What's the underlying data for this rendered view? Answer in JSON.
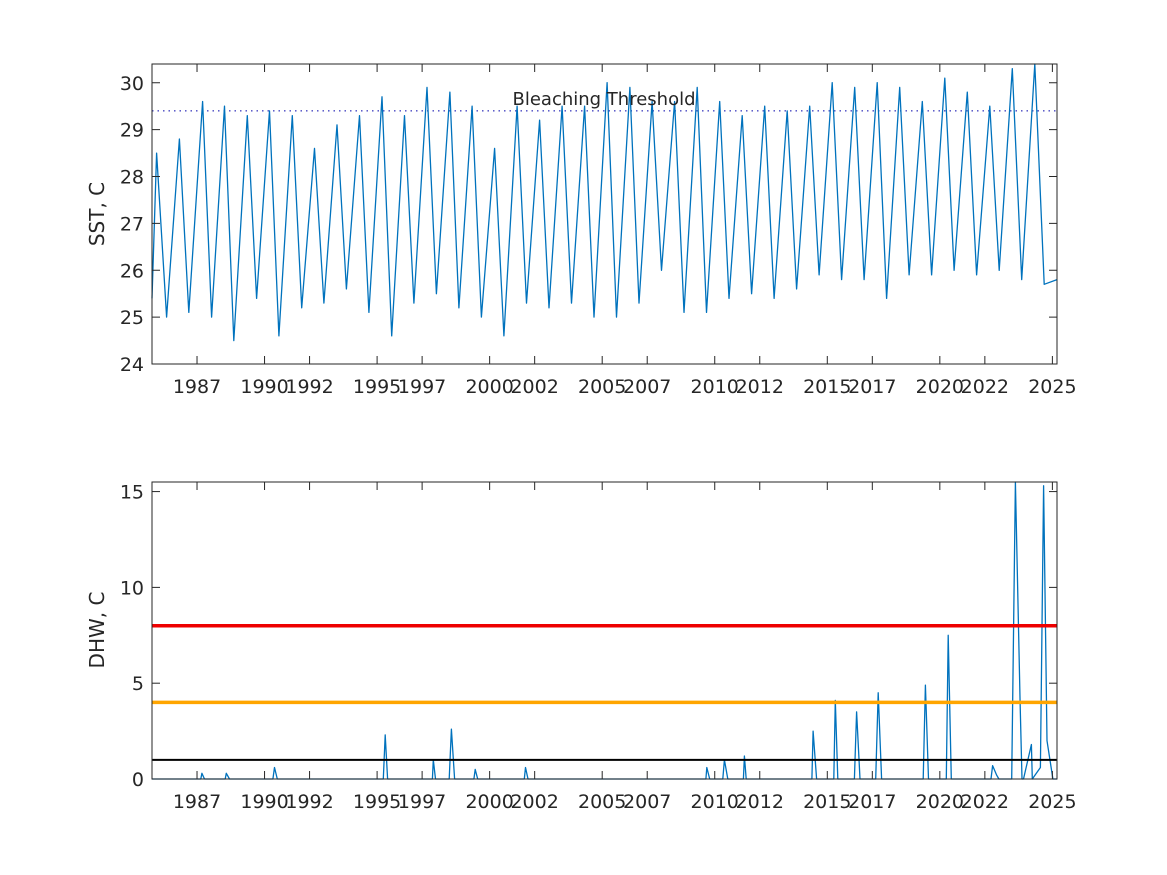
{
  "chart_data": [
    {
      "type": "line",
      "title": "",
      "xlabel": "",
      "ylabel": "SST, C",
      "xlim": [
        "1985-01-01",
        "2025-03-15"
      ],
      "ylim": [
        24,
        30.4
      ],
      "x_ticks": [
        "1987",
        "1990",
        "1992",
        "1995",
        "1997",
        "2000",
        "2002",
        "2005",
        "2007",
        "2010",
        "2012",
        "2015",
        "2017",
        "2020",
        "2022",
        "2025"
      ],
      "y_ticks": [
        "24",
        "25",
        "26",
        "27",
        "28",
        "29",
        "30"
      ],
      "grid": false,
      "series": [
        {
          "color": "#0072BD",
          "x": [
            "1985-01-01",
            "1985-03-15",
            "1985-08-25",
            "1986-03-20",
            "1986-08-20",
            "1987-04-01",
            "1987-08-25",
            "1988-03-20",
            "1988-08-20",
            "1989-03-25",
            "1989-08-25",
            "1990-03-20",
            "1990-08-20",
            "1991-03-25",
            "1991-08-25",
            "1992-03-20",
            "1992-08-20",
            "1993-03-20",
            "1993-08-20",
            "1994-03-20",
            "1994-08-20",
            "1995-03-20",
            "1995-08-25",
            "1996-03-20",
            "1996-08-20",
            "1997-03-20",
            "1997-08-20",
            "1998-03-25",
            "1998-08-20",
            "1999-03-20",
            "1999-08-20",
            "2000-03-20",
            "2000-08-20",
            "2001-03-20",
            "2001-08-20",
            "2002-03-20",
            "2002-08-20",
            "2003-03-20",
            "2003-08-20",
            "2004-03-20",
            "2004-08-20",
            "2005-03-20",
            "2005-08-20",
            "2006-03-25",
            "2006-08-20",
            "2007-03-20",
            "2007-08-20",
            "2008-03-20",
            "2008-08-20",
            "2009-03-20",
            "2009-08-20",
            "2010-03-20",
            "2010-08-20",
            "2011-03-20",
            "2011-08-20",
            "2012-03-20",
            "2012-08-20",
            "2013-03-20",
            "2013-08-20",
            "2014-03-20",
            "2014-08-20",
            "2015-03-20",
            "2015-08-20",
            "2016-03-20",
            "2016-08-20",
            "2017-03-20",
            "2017-08-20",
            "2018-03-20",
            "2018-08-20",
            "2019-03-20",
            "2019-08-20",
            "2020-03-20",
            "2020-08-20",
            "2021-03-20",
            "2021-08-20",
            "2022-03-20",
            "2022-08-20",
            "2023-03-20",
            "2023-08-20",
            "2024-03-20",
            "2024-08-20",
            "2025-03-15"
          ],
          "values": [
            25.4,
            28.5,
            25.0,
            28.8,
            25.1,
            29.6,
            25.0,
            29.5,
            24.5,
            29.3,
            25.4,
            29.4,
            24.6,
            29.3,
            25.2,
            28.6,
            25.3,
            29.1,
            25.6,
            29.3,
            25.1,
            29.7,
            24.6,
            29.3,
            25.3,
            29.9,
            25.5,
            29.8,
            25.2,
            29.5,
            25.0,
            28.6,
            24.6,
            29.5,
            25.3,
            29.2,
            25.2,
            29.5,
            25.3,
            29.5,
            25.0,
            30.0,
            25.0,
            29.9,
            25.3,
            29.6,
            26.0,
            29.6,
            25.1,
            29.9,
            25.1,
            29.6,
            25.4,
            29.3,
            25.5,
            29.5,
            25.4,
            29.4,
            25.6,
            29.5,
            25.9,
            30.0,
            25.8,
            29.9,
            25.8,
            30.0,
            25.4,
            29.9,
            25.9,
            29.6,
            25.9,
            30.1,
            26.0,
            29.8,
            25.9,
            29.5,
            26.0,
            30.3,
            25.8,
            30.4,
            25.7,
            25.8
          ]
        }
      ],
      "annotations": [
        {
          "text": "Bleaching Threshold",
          "y": 29.4
        }
      ],
      "reference_lines": [
        {
          "y": 29.4,
          "color": "#0000AA",
          "style": "dotted"
        }
      ]
    },
    {
      "type": "line",
      "title": "",
      "xlabel": "",
      "ylabel": "DHW, C",
      "xlim": [
        "1985-01-01",
        "2025-03-15"
      ],
      "ylim": [
        0,
        15.5
      ],
      "x_ticks": [
        "1987",
        "1990",
        "1992",
        "1995",
        "1997",
        "2000",
        "2002",
        "2005",
        "2007",
        "2010",
        "2012",
        "2015",
        "2017",
        "2020",
        "2022",
        "2025"
      ],
      "y_ticks": [
        "0",
        "5",
        "10",
        "15"
      ],
      "grid": false,
      "series": [
        {
          "color": "#0072BD",
          "x": [
            "1985-01-01",
            "1987-03-01",
            "1987-03-20",
            "1987-05-01",
            "1988-04-01",
            "1988-04-20",
            "1988-06-10",
            "1990-05-15",
            "1990-06-10",
            "1990-07-25",
            "1995-04-10",
            "1995-05-10",
            "1995-06-20",
            "1997-06-15",
            "1997-06-30",
            "1997-08-05",
            "1998-03-15",
            "1998-04-20",
            "1998-06-10",
            "1999-04-20",
            "1999-05-10",
            "1999-06-20",
            "2001-07-15",
            "2001-08-05",
            "2001-09-15",
            "2009-08-10",
            "2009-08-25",
            "2009-10-10",
            "2010-05-10",
            "2010-06-05",
            "2010-07-30",
            "2011-04-10",
            "2011-04-25",
            "2011-05-25",
            "2014-04-25",
            "2014-05-15",
            "2014-07-10",
            "2015-04-15",
            "2015-05-10",
            "2015-06-20",
            "2016-03-15",
            "2016-04-20",
            "2016-06-15",
            "2017-02-25",
            "2017-04-05",
            "2017-05-30",
            "2019-04-05",
            "2019-05-10",
            "2019-06-30",
            "2020-04-15",
            "2020-05-15",
            "2020-07-05",
            "2022-04-10",
            "2022-05-05",
            "2022-07-10",
            "2022-08-15",
            "2023-03-10",
            "2023-05-10",
            "2023-07-25",
            "2023-08-25",
            "2023-09-20",
            "2024-01-25",
            "2024-02-10",
            "2024-06-20",
            "2024-08-10",
            "2024-10-05",
            "2025-01-10",
            "2025-03-15"
          ],
          "values": [
            0,
            0,
            0.3,
            0,
            0,
            0.3,
            0,
            0,
            0.6,
            0,
            0,
            2.3,
            0,
            0,
            1.0,
            0,
            0,
            2.6,
            0,
            0,
            0.5,
            0,
            0,
            0.6,
            0,
            0,
            0.6,
            0,
            0,
            1.0,
            0,
            0,
            1.2,
            0,
            0,
            2.5,
            0,
            0,
            4.1,
            0,
            0,
            3.5,
            0,
            0,
            4.5,
            0,
            0,
            4.9,
            0,
            0,
            7.5,
            0,
            0,
            0.7,
            0.2,
            0,
            0,
            15.5,
            4.0,
            0,
            0,
            1.8,
            0,
            0.6,
            15.3,
            2.0,
            0,
            0
          ]
        }
      ],
      "reference_lines": [
        {
          "y": 8,
          "color": "#EE0000",
          "style": "solid"
        },
        {
          "y": 4,
          "color": "#FFA500",
          "style": "solid"
        },
        {
          "y": 1,
          "color": "#000000",
          "style": "solid"
        }
      ]
    }
  ]
}
